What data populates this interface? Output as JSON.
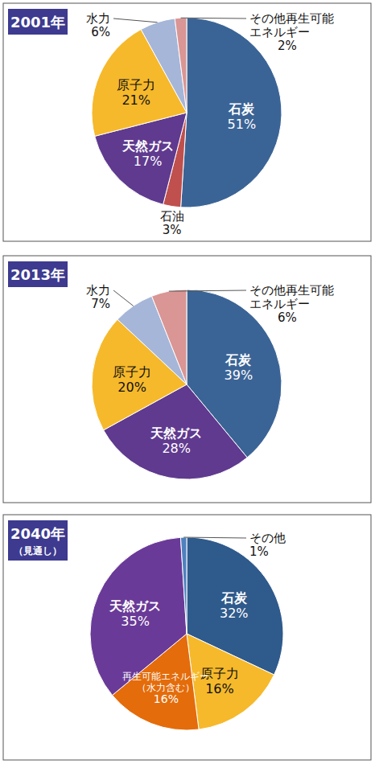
{
  "chart_data": [
    {
      "type": "pie",
      "title": "2001年",
      "categories": [
        "石炭",
        "石油",
        "天然ガス",
        "原子力",
        "水力",
        "その他再生可能\nエネルギー"
      ],
      "values": [
        51,
        3,
        17,
        21,
        6,
        2
      ],
      "value_labels": [
        "51%",
        "3%",
        "17%",
        "21%",
        "6%",
        "2%"
      ],
      "colors": [
        "#3b6496",
        "#c0504d",
        "#5f3a8f",
        "#f6b92b",
        "#a6b6d9",
        "#d99694"
      ],
      "data_labels": true
    },
    {
      "type": "pie",
      "title": "2013年",
      "categories": [
        "石炭",
        "天然ガス",
        "原子力",
        "水力",
        "その他再生可能\nエネルギー"
      ],
      "values": [
        39,
        28,
        20,
        7,
        6
      ],
      "value_labels": [
        "39%",
        "28%",
        "20%",
        "7%",
        "6%"
      ],
      "colors": [
        "#3b6496",
        "#5f3a8f",
        "#f6b92b",
        "#a6b6d9",
        "#d99694"
      ],
      "data_labels": true
    },
    {
      "type": "pie",
      "title": "2040年",
      "subtitle": "（見通し）",
      "categories": [
        "石炭",
        "原子力",
        "再生可能エネルギー\n（水力含む）",
        "天然ガス",
        "その他"
      ],
      "values": [
        32,
        16,
        16,
        35,
        1
      ],
      "value_labels": [
        "32%",
        "16%",
        "16%",
        "35%",
        "1%"
      ],
      "colors": [
        "#2f5a8c",
        "#f6b92b",
        "#e46c0a",
        "#6a3a98",
        "#4f81bd"
      ],
      "data_labels": true
    }
  ]
}
